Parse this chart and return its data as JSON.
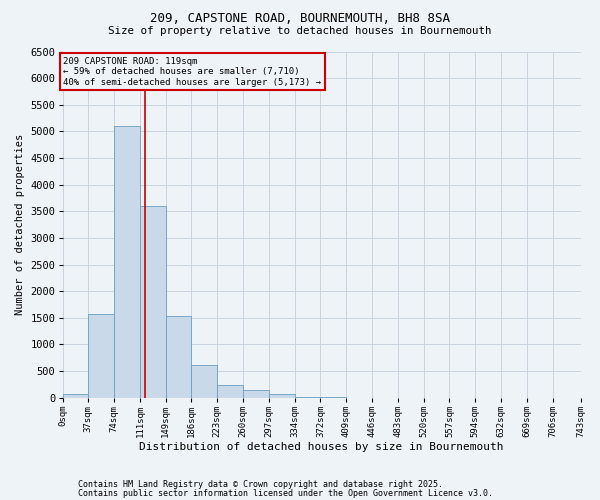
{
  "title1": "209, CAPSTONE ROAD, BOURNEMOUTH, BH8 8SA",
  "title2": "Size of property relative to detached houses in Bournemouth",
  "xlabel": "Distribution of detached houses by size in Bournemouth",
  "ylabel": "Number of detached properties",
  "property_label": "209 CAPSTONE ROAD: 119sqm",
  "annotation_line1": "← 59% of detached houses are smaller (7,710)",
  "annotation_line2": "40% of semi-detached houses are larger (5,173) →",
  "footnote1": "Contains HM Land Registry data © Crown copyright and database right 2025.",
  "footnote2": "Contains public sector information licensed under the Open Government Licence v3.0.",
  "bin_edges": [
    0,
    37,
    74,
    111,
    148,
    185,
    222,
    259,
    296,
    333,
    370,
    407,
    444,
    481,
    518,
    555,
    592,
    629,
    666,
    703,
    743
  ],
  "bin_labels": [
    "0sqm",
    "37sqm",
    "74sqm",
    "111sqm",
    "149sqm",
    "186sqm",
    "223sqm",
    "260sqm",
    "297sqm",
    "334sqm",
    "372sqm",
    "409sqm",
    "446sqm",
    "483sqm",
    "520sqm",
    "557sqm",
    "594sqm",
    "632sqm",
    "669sqm",
    "706sqm",
    "743sqm"
  ],
  "counts": [
    65,
    1580,
    5100,
    3600,
    1540,
    610,
    240,
    145,
    70,
    15,
    5,
    2,
    1,
    0,
    0,
    0,
    0,
    0,
    0,
    0
  ],
  "bar_color": "#c9d9ea",
  "bar_edge_color": "#6a9ec0",
  "vline_color": "#cc0000",
  "vline_x": 119,
  "annotation_box_color": "#cc0000",
  "ylim": [
    0,
    6500
  ],
  "yticks": [
    0,
    500,
    1000,
    1500,
    2000,
    2500,
    3000,
    3500,
    4000,
    4500,
    5000,
    5500,
    6000,
    6500
  ],
  "grid_color": "#c8d4e0",
  "background_color": "#eef3f8"
}
